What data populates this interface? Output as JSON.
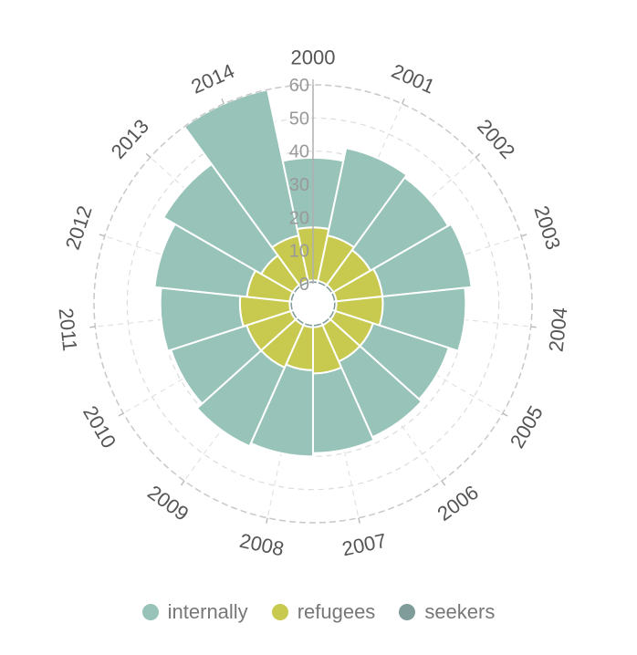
{
  "chart_data": {
    "type": "bar",
    "polar": true,
    "stacked": true,
    "title": "",
    "categories": [
      "2000",
      "2001",
      "2002",
      "2003",
      "2004",
      "2005",
      "2006",
      "2007",
      "2008",
      "2009",
      "2010",
      "2011",
      "2012",
      "2013",
      "2014"
    ],
    "series": [
      {
        "name": "seekers",
        "color": "#7f9c9a",
        "values": [
          1,
          1,
          1,
          1,
          1,
          1,
          1,
          1,
          1,
          1,
          1,
          1,
          1,
          1,
          1
        ]
      },
      {
        "name": "refugees",
        "color": "#c8c94f",
        "values": [
          16,
          14,
          13,
          14,
          14,
          12,
          12,
          14,
          13,
          14,
          14,
          15,
          13,
          11,
          14
        ]
      },
      {
        "name": "internally",
        "color": "#97c3b8",
        "values": [
          21,
          27,
          27,
          27,
          25,
          24,
          25,
          24,
          26,
          26,
          24,
          24,
          28,
          34,
          45
        ]
      }
    ],
    "radial_axis": {
      "min": 0,
      "max": 60,
      "ticks": [
        "0",
        "10",
        "20",
        "30",
        "40",
        "50",
        "60"
      ]
    },
    "legend_position": "bottom",
    "grid": true
  },
  "legend": [
    {
      "label": "internally",
      "color": "#97c3b8"
    },
    {
      "label": "refugees",
      "color": "#c8c94f"
    },
    {
      "label": "seekers",
      "color": "#7f9c9a"
    }
  ]
}
